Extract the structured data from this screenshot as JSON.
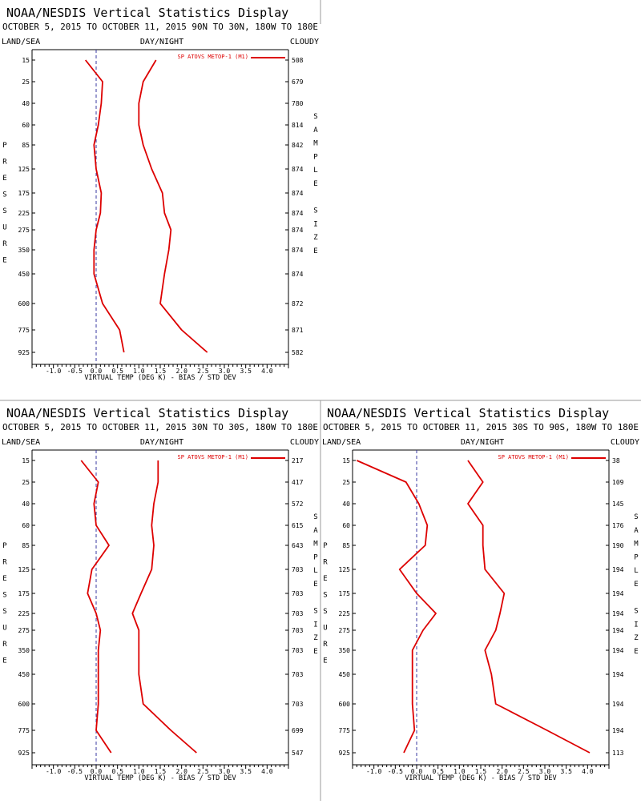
{
  "panel_title": "NOAA/NESDIS Vertical Statistics Display",
  "left_label": "LAND/SEA",
  "center_label": "DAY/NIGHT",
  "right_label": "CLOUDY",
  "legend_label": "SP ATOVS METOP-1 (M1)",
  "xlabel": "VIRTUAL TEMP (DEG K) - BIAS / STD DEV",
  "ylabel_letters": [
    "P",
    "R",
    "E",
    "S",
    "S",
    "U",
    "R",
    "E"
  ],
  "right_axis_letters": [
    "S",
    "A",
    "M",
    "P",
    "L",
    "E",
    " ",
    "S",
    "I",
    "Z",
    "E"
  ],
  "pressure_levels": [
    "15",
    "25",
    "40",
    "60",
    "85",
    "125",
    "175",
    "225",
    "275",
    "350",
    "450",
    "600",
    "775",
    "925"
  ],
  "x_ticks": [
    "-1.0",
    "-0.5",
    "0.0",
    "0.5",
    "1.0",
    "1.5",
    "2.0",
    "2.5",
    "3.0",
    "3.5",
    "4.0"
  ],
  "colors": {
    "series": "#dd0000",
    "zero_line": "#3a3aa0",
    "axis": "#000000",
    "divider": "#999999"
  },
  "chart_data": [
    {
      "type": "line",
      "subtitle": "OCTOBER 5, 2015 TO OCTOBER 11, 2015 90N TO 30N, 180W TO 180E",
      "xlim": [
        -1.5,
        4.5
      ],
      "y": [
        "15",
        "25",
        "40",
        "60",
        "85",
        "125",
        "175",
        "225",
        "275",
        "350",
        "450",
        "600",
        "775",
        "925"
      ],
      "series": [
        {
          "name": "bias",
          "values": [
            -0.25,
            0.15,
            0.12,
            0.05,
            -0.05,
            0.0,
            0.12,
            0.1,
            0.0,
            -0.05,
            -0.05,
            0.15,
            0.55,
            0.65
          ]
        },
        {
          "name": "std dev",
          "values": [
            1.4,
            1.1,
            1.0,
            1.0,
            1.1,
            1.3,
            1.55,
            1.6,
            1.75,
            1.7,
            1.6,
            1.5,
            2.0,
            2.6
          ]
        }
      ],
      "sample_size": [
        "508",
        "679",
        "780",
        "814",
        "842",
        "874",
        "874",
        "874",
        "874",
        "874",
        "874",
        "872",
        "871",
        "582"
      ]
    },
    {
      "type": "line",
      "subtitle": "OCTOBER 5, 2015 TO OCTOBER 11, 2015 30N TO 30S, 180W TO 180E",
      "xlim": [
        -1.5,
        4.5
      ],
      "y": [
        "15",
        "25",
        "40",
        "60",
        "85",
        "125",
        "175",
        "225",
        "275",
        "350",
        "450",
        "600",
        "775",
        "925"
      ],
      "series": [
        {
          "name": "bias",
          "values": [
            -0.35,
            0.05,
            -0.05,
            0.0,
            0.3,
            -0.1,
            -0.2,
            0.0,
            0.1,
            0.05,
            0.05,
            0.05,
            0.0,
            0.35
          ]
        },
        {
          "name": "std dev",
          "values": [
            1.45,
            1.45,
            1.35,
            1.3,
            1.35,
            1.3,
            1.05,
            0.85,
            1.0,
            1.0,
            1.0,
            1.1,
            1.75,
            2.35
          ]
        }
      ],
      "sample_size": [
        "217",
        "417",
        "572",
        "615",
        "643",
        "703",
        "703",
        "703",
        "703",
        "703",
        "703",
        "703",
        "699",
        "547"
      ]
    },
    {
      "type": "line",
      "subtitle": "OCTOBER 5, 2015 TO OCTOBER 11, 2015 30S TO 90S, 180W TO 180E",
      "xlim": [
        -1.5,
        4.5
      ],
      "y": [
        "15",
        "25",
        "40",
        "60",
        "85",
        "125",
        "175",
        "225",
        "275",
        "350",
        "450",
        "600",
        "775",
        "925"
      ],
      "series": [
        {
          "name": "bias",
          "values": [
            -1.4,
            -0.25,
            0.05,
            0.25,
            0.2,
            -0.4,
            0.0,
            0.45,
            0.15,
            -0.1,
            -0.1,
            -0.1,
            -0.05,
            -0.3
          ]
        },
        {
          "name": "std dev",
          "values": [
            1.2,
            1.55,
            1.2,
            1.55,
            1.55,
            1.6,
            2.05,
            1.95,
            1.85,
            1.6,
            1.75,
            1.85,
            3.05,
            4.05
          ]
        }
      ],
      "sample_size": [
        "38",
        "109",
        "145",
        "176",
        "190",
        "194",
        "194",
        "194",
        "194",
        "194",
        "194",
        "194",
        "194",
        "113"
      ]
    }
  ]
}
